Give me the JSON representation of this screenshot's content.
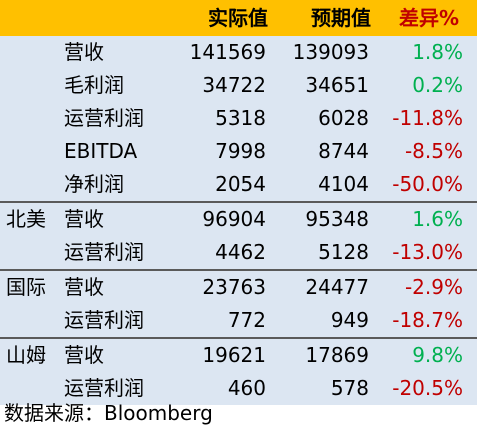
{
  "header": {
    "col_region": "",
    "col_metric": "",
    "col_actual": "实际值",
    "col_expected": "预期值",
    "col_diff": "差异%"
  },
  "rows": [
    {
      "region": "",
      "metric": "营收",
      "actual": "141569",
      "expected": "139093",
      "diff": "1.8%",
      "sign": "pos"
    },
    {
      "region": "",
      "metric": "毛利润",
      "actual": "34722",
      "expected": "34651",
      "diff": "0.2%",
      "sign": "pos"
    },
    {
      "region": "",
      "metric": "运营利润",
      "actual": "5318",
      "expected": "6028",
      "diff": "-11.8%",
      "sign": "neg"
    },
    {
      "region": "",
      "metric": "EBITDA",
      "actual": "7998",
      "expected": "8744",
      "diff": "-8.5%",
      "sign": "neg"
    },
    {
      "region": "",
      "metric": "净利润",
      "actual": "2054",
      "expected": "4104",
      "diff": "-50.0%",
      "sign": "neg"
    },
    {
      "region": "北美",
      "metric": "营收",
      "actual": "96904",
      "expected": "95348",
      "diff": "1.6%",
      "sign": "pos"
    },
    {
      "region": "",
      "metric": "运营利润",
      "actual": "4462",
      "expected": "5128",
      "diff": "-13.0%",
      "sign": "neg"
    },
    {
      "region": "国际",
      "metric": "营收",
      "actual": "23763",
      "expected": "24477",
      "diff": "-2.9%",
      "sign": "neg"
    },
    {
      "region": "",
      "metric": "运营利润",
      "actual": "772",
      "expected": "949",
      "diff": "-18.7%",
      "sign": "neg"
    },
    {
      "region": "山姆",
      "metric": "营收",
      "actual": "19621",
      "expected": "17869",
      "diff": "9.8%",
      "sign": "pos"
    },
    {
      "region": "",
      "metric": "运营利润",
      "actual": "460",
      "expected": "578",
      "diff": "-20.5%",
      "sign": "neg"
    }
  ],
  "colors": {
    "header_bg": "#ffc000",
    "body_bg": "#dce6f2",
    "positive": "#00b050",
    "negative": "#c00000"
  },
  "footer": {
    "source": "数据来源：Bloomberg"
  }
}
